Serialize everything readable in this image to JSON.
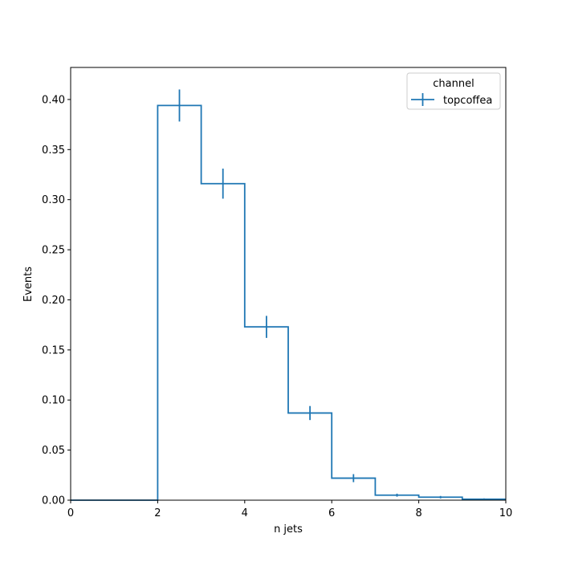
{
  "chart_data": {
    "type": "histogram",
    "xlabel": "n jets",
    "ylabel": "Events",
    "xlim": [
      0,
      10
    ],
    "ylim": [
      0,
      0.432
    ],
    "xticks": [
      0,
      2,
      4,
      6,
      8,
      10
    ],
    "yticks": [
      0.0,
      0.05,
      0.1,
      0.15,
      0.2,
      0.25,
      0.3,
      0.35,
      0.4
    ],
    "xtick_labels": [
      "0",
      "2",
      "4",
      "6",
      "8",
      "10"
    ],
    "ytick_labels": [
      "0.00",
      "0.05",
      "0.10",
      "0.15",
      "0.20",
      "0.25",
      "0.30",
      "0.35",
      "0.40"
    ],
    "bin_edges": [
      0,
      1,
      2,
      3,
      4,
      5,
      6,
      7,
      8,
      9,
      10
    ],
    "grid": false,
    "legend": {
      "title": "channel",
      "placement": "top-right"
    },
    "series": [
      {
        "name": "topcoffea",
        "color": "#1f77b4",
        "values": [
          0.0,
          0.0,
          0.394,
          0.316,
          0.173,
          0.087,
          0.022,
          0.005,
          0.003,
          0.001
        ],
        "errors": [
          0.0,
          0.0,
          0.016,
          0.015,
          0.011,
          0.007,
          0.004,
          0.0015,
          0.0012,
          0.0008
        ]
      }
    ]
  }
}
